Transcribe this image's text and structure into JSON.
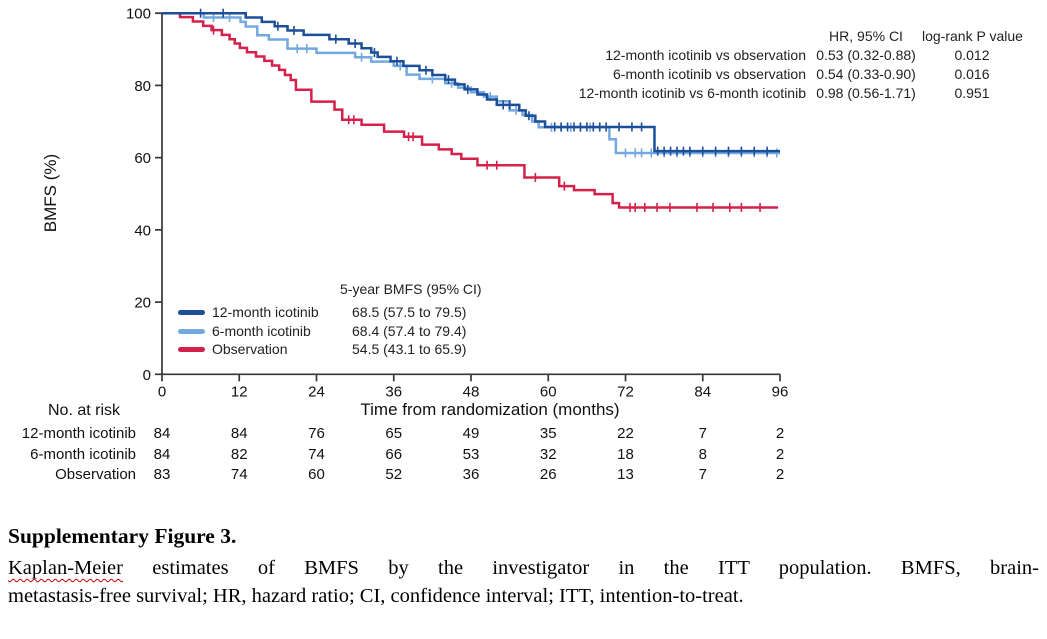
{
  "colors": {
    "series_12mo": "#1d4e9a",
    "series_6mo": "#74a8e0",
    "series_obs": "#d4204a",
    "axis": "#363636",
    "text": "#1a1a1a",
    "spellcheck_underline": "#c00000"
  },
  "chart_data": {
    "type": "line",
    "subtype": "kaplan-meier-step",
    "title": "",
    "xlabel": "Time from randomization (months)",
    "ylabel": "BMFS (%)",
    "xlim": [
      0,
      96
    ],
    "ylim": [
      0,
      100
    ],
    "x_ticks": [
      0,
      12,
      24,
      36,
      48,
      60,
      72,
      84,
      96
    ],
    "y_ticks": [
      0,
      20,
      40,
      60,
      80,
      100
    ],
    "grid": false,
    "legend_position": "lower-left",
    "series": [
      {
        "name": "12-month icotinib",
        "color": "#1d4e9a",
        "five_year_bmfs": "68.5 (57.5 to 79.5)",
        "start": [
          0,
          100
        ],
        "end_month": 96,
        "steps": [
          [
            13,
            98.8
          ],
          [
            15.5,
            97.6
          ],
          [
            17.5,
            96.4
          ],
          [
            19.5,
            95.2
          ],
          [
            22,
            94
          ],
          [
            26,
            92.8
          ],
          [
            29,
            91.6
          ],
          [
            31,
            90.3
          ],
          [
            32.5,
            89.1
          ],
          [
            33.5,
            87.9
          ],
          [
            35.5,
            86.7
          ],
          [
            37.5,
            85.4
          ],
          [
            40,
            84.2
          ],
          [
            42,
            82.9
          ],
          [
            44,
            81.6
          ],
          [
            45.5,
            80.3
          ],
          [
            47,
            78.9
          ],
          [
            49,
            77.5
          ],
          [
            50.5,
            76.1
          ],
          [
            52,
            74.6
          ],
          [
            55.5,
            73.1
          ],
          [
            56.5,
            71.6
          ],
          [
            58,
            70
          ],
          [
            59.5,
            68.5
          ],
          [
            76.5,
            61.8
          ]
        ],
        "censor_ticks": [
          [
            6,
            100
          ],
          [
            9.5,
            100
          ],
          [
            18,
            96.4
          ],
          [
            20.5,
            95.2
          ],
          [
            27,
            92.8
          ],
          [
            30,
            91.6
          ],
          [
            33,
            89.1
          ],
          [
            36.5,
            86.7
          ],
          [
            41,
            84.2
          ],
          [
            44.5,
            81.6
          ],
          [
            47.5,
            78.9
          ],
          [
            53,
            74.6
          ],
          [
            54,
            74.6
          ],
          [
            57,
            71.6
          ],
          [
            61,
            68.5
          ],
          [
            62,
            68.5
          ],
          [
            63,
            68.5
          ],
          [
            64,
            68.5
          ],
          [
            65,
            68.5
          ],
          [
            66,
            68.5
          ],
          [
            67,
            68.5
          ],
          [
            68,
            68.5
          ],
          [
            69,
            68.5
          ],
          [
            71,
            68.5
          ],
          [
            73,
            68.5
          ],
          [
            74.5,
            68.5
          ],
          [
            77,
            61.8
          ],
          [
            78,
            61.8
          ],
          [
            79,
            61.8
          ],
          [
            80,
            61.8
          ],
          [
            81,
            61.8
          ],
          [
            82,
            61.8
          ],
          [
            84,
            61.8
          ],
          [
            86,
            61.8
          ],
          [
            88,
            61.8
          ],
          [
            90,
            61.8
          ],
          [
            92,
            61.8
          ],
          [
            94,
            61.8
          ]
        ]
      },
      {
        "name": "6-month icotinib",
        "color": "#74a8e0",
        "five_year_bmfs": "68.4 (57.4 to 79.4)",
        "start": [
          0,
          100
        ],
        "end_month": 96,
        "steps": [
          [
            6.5,
            98.8
          ],
          [
            12.2,
            97.6
          ],
          [
            13,
            96.3
          ],
          [
            14.8,
            93.9
          ],
          [
            16.6,
            92.7
          ],
          [
            19.5,
            90.2
          ],
          [
            24,
            89
          ],
          [
            30,
            87.8
          ],
          [
            32.5,
            86.6
          ],
          [
            36,
            85.4
          ],
          [
            38,
            83
          ],
          [
            40,
            81.8
          ],
          [
            44,
            80.6
          ],
          [
            46,
            79.4
          ],
          [
            48,
            78.1
          ],
          [
            50,
            76.9
          ],
          [
            52,
            75.6
          ],
          [
            54,
            73.1
          ],
          [
            56,
            71.8
          ],
          [
            57.5,
            70
          ],
          [
            58.5,
            68.4
          ],
          [
            69.5,
            65.1
          ],
          [
            70.5,
            61.3
          ]
        ],
        "censor_ticks": [
          [
            8,
            98.8
          ],
          [
            10.5,
            98.8
          ],
          [
            21,
            90.2
          ],
          [
            22.5,
            90.2
          ],
          [
            31,
            87.8
          ],
          [
            37,
            85.4
          ],
          [
            42,
            81.8
          ],
          [
            45,
            80.6
          ],
          [
            51,
            76.9
          ],
          [
            55,
            73.1
          ],
          [
            60.5,
            68.4
          ],
          [
            62,
            68.4
          ],
          [
            63.5,
            68.4
          ],
          [
            65,
            68.4
          ],
          [
            66.5,
            68.4
          ],
          [
            68,
            68.4
          ],
          [
            72,
            61.3
          ],
          [
            73.5,
            61.3
          ],
          [
            74.5,
            61.3
          ],
          [
            76,
            61.3
          ],
          [
            78,
            61.3
          ],
          [
            80,
            61.3
          ],
          [
            82,
            61.3
          ],
          [
            84,
            61.3
          ],
          [
            86,
            61.3
          ],
          [
            88,
            61.3
          ],
          [
            90,
            61.3
          ],
          [
            92,
            61.3
          ],
          [
            94,
            61.3
          ],
          [
            95.5,
            61.3
          ]
        ]
      },
      {
        "name": "Observation",
        "color": "#d4204a",
        "five_year_bmfs": "54.5 (43.1 to 65.9)",
        "start": [
          0,
          100
        ],
        "end_month": 95.7,
        "steps": [
          [
            2.8,
            98.9
          ],
          [
            4.8,
            97.7
          ],
          [
            6.4,
            96.5
          ],
          [
            7.7,
            95.3
          ],
          [
            9.3,
            94
          ],
          [
            10.5,
            92.8
          ],
          [
            11.3,
            91.6
          ],
          [
            12.1,
            90.4
          ],
          [
            13.2,
            89.2
          ],
          [
            14.6,
            88
          ],
          [
            15.9,
            86.8
          ],
          [
            17.1,
            85.5
          ],
          [
            18.2,
            84.3
          ],
          [
            19.1,
            82.9
          ],
          [
            20,
            81.5
          ],
          [
            20.8,
            78.8
          ],
          [
            23.2,
            75.5
          ],
          [
            26.8,
            73.3
          ],
          [
            28,
            70.5
          ],
          [
            31,
            69.1
          ],
          [
            34.5,
            67.2
          ],
          [
            37.6,
            65.8
          ],
          [
            40.4,
            63.6
          ],
          [
            43,
            62.3
          ],
          [
            45,
            61
          ],
          [
            46.5,
            59.7
          ],
          [
            49,
            57.9
          ],
          [
            56.3,
            54.5
          ],
          [
            61.7,
            52.1
          ],
          [
            64,
            51
          ],
          [
            67.2,
            49.9
          ],
          [
            70,
            47.4
          ],
          [
            71,
            46.2
          ]
        ],
        "censor_ticks": [
          [
            8,
            95.3
          ],
          [
            29,
            70.5
          ],
          [
            29.8,
            70.5
          ],
          [
            38.3,
            65.8
          ],
          [
            39,
            65.8
          ],
          [
            50.5,
            57.9
          ],
          [
            52,
            57.9
          ],
          [
            58,
            54.5
          ],
          [
            62.5,
            52.1
          ],
          [
            72.7,
            46.2
          ],
          [
            73.5,
            46.2
          ],
          [
            75,
            46.2
          ],
          [
            76.9,
            46.2
          ],
          [
            78.9,
            46.2
          ],
          [
            83.1,
            46.2
          ],
          [
            85.6,
            46.2
          ],
          [
            88.2,
            46.2
          ],
          [
            90,
            46.2
          ],
          [
            92.9,
            46.2
          ]
        ]
      }
    ]
  },
  "hr_table": {
    "col1_header": "HR, 95% CI",
    "col2_header": "log-rank P value",
    "rows": [
      {
        "label": "12-month icotinib vs observation",
        "hr": "0.53 (0.32-0.88)",
        "p": "0.012"
      },
      {
        "label": "6-month icotinib vs observation",
        "hr": "0.54 (0.33-0.90)",
        "p": "0.016"
      },
      {
        "label": "12-month icotinib vs 6-month icotinib",
        "hr": "0.98 (0.56-1.71)",
        "p": "0.951"
      }
    ]
  },
  "legend": {
    "header": "5-year BMFS (95% CI)",
    "rows": [
      {
        "label": "12-month icotinib",
        "value": "68.5 (57.5 to 79.5)",
        "color": "#1d4e9a"
      },
      {
        "label": "6-month icotinib",
        "value": "68.4 (57.4 to 79.4)",
        "color": "#74a8e0"
      },
      {
        "label": "Observation",
        "value": "54.5 (43.1 to 65.9)",
        "color": "#d4204a"
      }
    ]
  },
  "risk_table": {
    "title": "No. at risk",
    "time_points": [
      0,
      12,
      24,
      36,
      48,
      60,
      72,
      84,
      96
    ],
    "rows": [
      {
        "label": "12-month icotinib",
        "counts": [
          "84",
          "84",
          "76",
          "65",
          "49",
          "35",
          "22",
          "7",
          "2"
        ]
      },
      {
        "label": "6-month icotinib",
        "counts": [
          "84",
          "82",
          "74",
          "66",
          "53",
          "32",
          "18",
          "8",
          "2"
        ]
      },
      {
        "label": "Observation",
        "counts": [
          "83",
          "74",
          "60",
          "52",
          "36",
          "26",
          "13",
          "7",
          "2"
        ]
      }
    ]
  },
  "caption": {
    "title": "Supplementary Figure 3.",
    "spell_word": "Kaplan-Meier",
    "line1_rest": " estimates of BMFS by the investigator in the ITT population. BMFS, brain-",
    "line2": "metastasis-free survival; HR, hazard ratio; CI, confidence interval; ITT, intention-to-treat."
  }
}
